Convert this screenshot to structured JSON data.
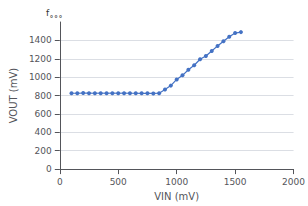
{
  "chart_data": {
    "type": "line",
    "marker": "circle",
    "color": "#4472C4",
    "xlabel": "VIN (mV)",
    "ylabel": "VOUT (mV)",
    "annotation": "f˳˳˳",
    "x": [
      100,
      150,
      200,
      250,
      300,
      350,
      400,
      450,
      500,
      550,
      600,
      650,
      700,
      750,
      800,
      850,
      900,
      950,
      1000,
      1050,
      1100,
      1150,
      1200,
      1250,
      1300,
      1350,
      1400,
      1450,
      1500,
      1550
    ],
    "values": [
      825,
      825,
      827,
      826,
      825,
      826,
      825,
      826,
      825,
      826,
      825,
      825,
      824,
      825,
      823,
      825,
      865,
      908,
      975,
      1020,
      1080,
      1130,
      1195,
      1230,
      1285,
      1340,
      1390,
      1440,
      1480,
      1490
    ],
    "xlim": [
      0,
      2000
    ],
    "ylim": [
      0,
      1600
    ],
    "xticks": [
      0,
      500,
      1000,
      1500,
      2000
    ],
    "yticks": [
      0,
      200,
      400,
      600,
      800,
      1000,
      1200,
      1400
    ],
    "grid": true
  }
}
